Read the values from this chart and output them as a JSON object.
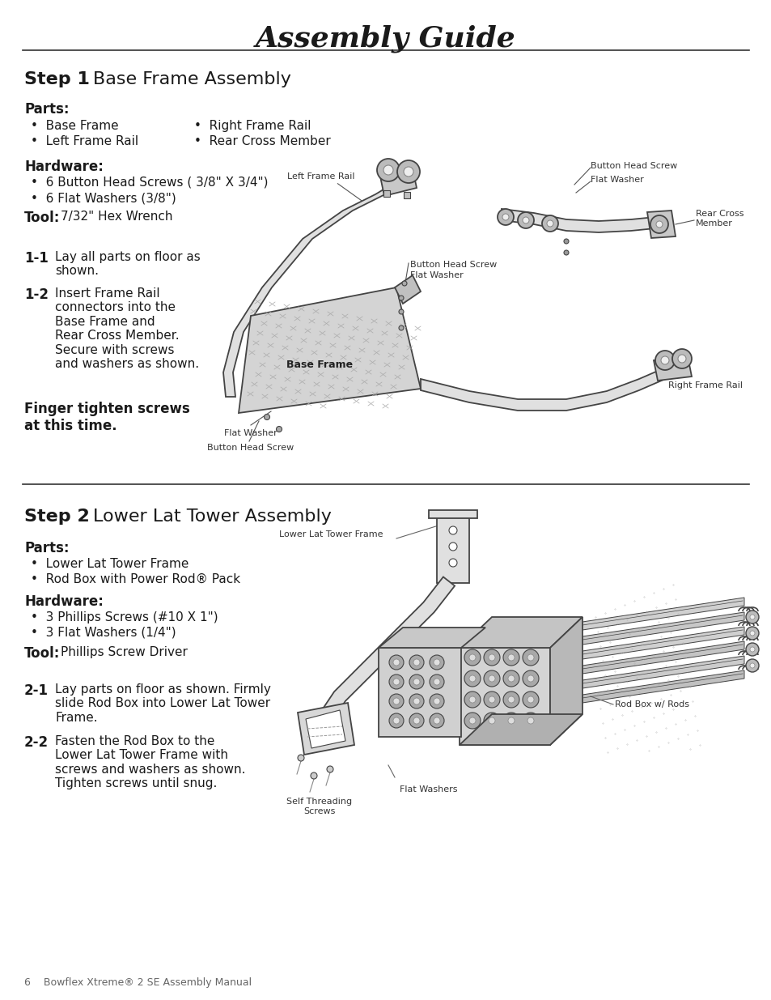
{
  "title": "Assembly Guide",
  "bg_color": "#ffffff",
  "text_color": "#1a1a1a",
  "page_width": 9.54,
  "page_height": 12.35,
  "step1": {
    "heading_bold": "Step 1",
    "heading_rest": "  Base Frame Assembly",
    "parts_label": "Parts:",
    "parts_col1": [
      "Base Frame",
      "Left Frame Rail"
    ],
    "parts_col2": [
      "Right Frame Rail",
      "Rear Cross Member"
    ],
    "hardware_label": "Hardware:",
    "hardware_items": [
      "6 Button Head Screws ( 3/8\" X 3/4\")",
      "6 Flat Washers (3/8\")"
    ],
    "tool_label": "Tool:",
    "tool_text": "  7/32\" Hex Wrench",
    "step11_num": "1-1",
    "step11_text": "Lay all parts on floor as\nshown.",
    "step12_num": "1-2",
    "step12_text": "Insert Frame Rail\nconnectors into the\nBase Frame and\nRear Cross Member.\nSecure with screws\nand washers as shown.",
    "warning": "Finger tighten screws\nat this time."
  },
  "step2": {
    "heading_bold": "Step 2",
    "heading_rest": "  Lower Lat Tower Assembly",
    "parts_label": "Parts:",
    "parts_col1": [
      "Lower Lat Tower Frame",
      "Rod Box with Power Rod® Pack"
    ],
    "hardware_label": "Hardware:",
    "hardware_items": [
      "3 Phillips Screws (#10 X 1\")",
      "3 Flat Washers (1/4\")"
    ],
    "tool_label": "Tool:",
    "tool_text": "  Phillips Screw Driver",
    "step21_num": "2-1",
    "step21_text": "Lay parts on floor as shown. Firmly\nslide Rod Box into Lower Lat Tower\nFrame.",
    "step22_num": "2-2",
    "step22_text": "Fasten the Rod Box to the\nLower Lat Tower Frame with\nscrews and washers as shown.\nTighten screws until snug."
  },
  "footer": "6    Bowflex Xtreme® 2 SE Assembly Manual",
  "label_fontsize": 8,
  "bullet_fontsize": 11,
  "heading_fontsize": 16,
  "section_fontsize": 12
}
